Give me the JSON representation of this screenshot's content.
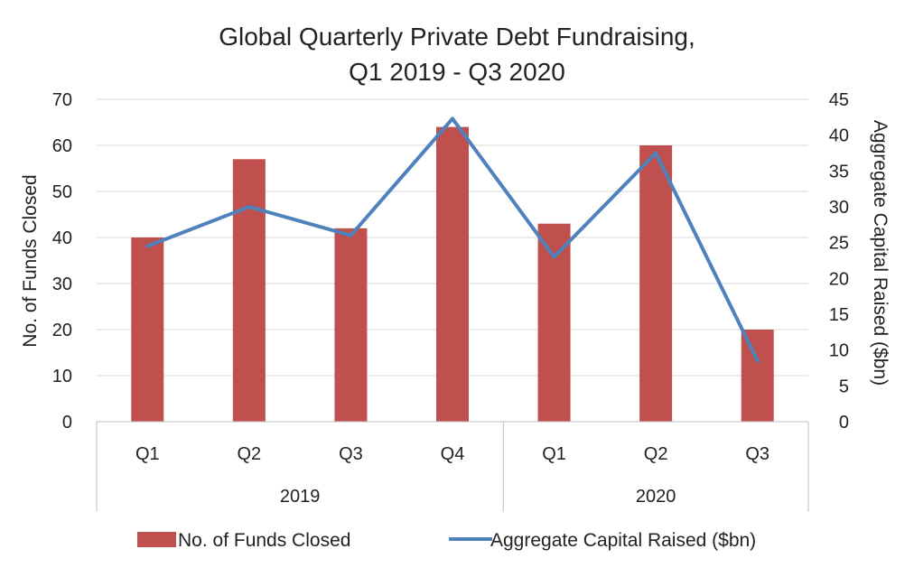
{
  "chart_data": {
    "type": "bar",
    "title_lines": [
      "Global Quarterly Private Debt Fundraising,",
      "Q1 2019 - Q3 2020"
    ],
    "categories": [
      "Q1",
      "Q2",
      "Q3",
      "Q4",
      "Q1",
      "Q2",
      "Q3"
    ],
    "groups": [
      {
        "label": "2019",
        "count": 4
      },
      {
        "label": "2020",
        "count": 3
      }
    ],
    "series": [
      {
        "name": "No. of Funds Closed",
        "type": "bar",
        "axis": "left",
        "color": "#c0504d",
        "values": [
          40,
          57,
          42,
          64,
          43,
          60,
          20
        ]
      },
      {
        "name": "Aggregate Capital Raised ($bn)",
        "type": "line",
        "axis": "right",
        "color": "#4f81bd",
        "values": [
          24.5,
          30,
          26,
          42.3,
          23,
          37.5,
          8.5
        ]
      }
    ],
    "ylabel": "No. of Funds Closed",
    "y2label": "Aggregate Capital Raised ($bn)",
    "ylim": [
      0,
      70
    ],
    "y2lim": [
      0,
      45
    ],
    "yticks": [
      0,
      10,
      20,
      30,
      40,
      50,
      60,
      70
    ],
    "y2ticks": [
      0,
      5,
      10,
      15,
      20,
      25,
      30,
      35,
      40,
      45
    ],
    "grid": true,
    "legend_position": "bottom"
  }
}
